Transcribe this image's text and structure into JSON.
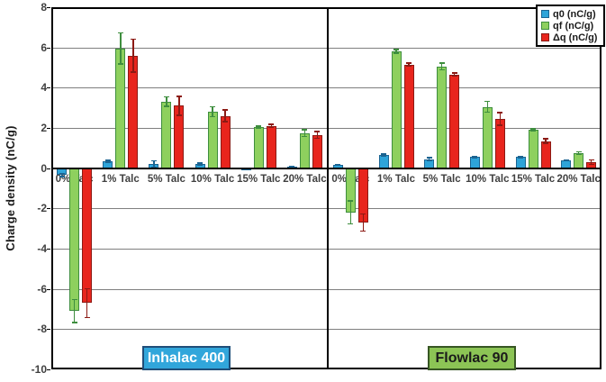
{
  "chart_data": {
    "type": "bar",
    "title": "",
    "ylabel": "Charge density (nC/g)",
    "ylim": [
      -10,
      8
    ],
    "ytick_step": 2,
    "grid": true,
    "legend_position": "top-right",
    "categories": [
      "0% Talc",
      "1% Talc",
      "5% Talc",
      "10% Talc",
      "15% Talc",
      "20% Talc"
    ],
    "legend": [
      {
        "label": "q0 (nC/g)",
        "color": "#2EA4D9",
        "border": "#1B6492"
      },
      {
        "label": "qf (nC/g)",
        "color": "#8ED05E",
        "border": "#3E8E3E"
      },
      {
        "label": "Δq (nC/g)",
        "color": "#E8251D",
        "border": "#8C1A14"
      }
    ],
    "panels": [
      {
        "name": "Inhalac 400",
        "label_bg": "#31A6DB",
        "label_border": "#1F4E79",
        "label_text_color": "#FFFFFF",
        "series": [
          {
            "name": "q0 (nC/g)",
            "values": [
              -0.35,
              0.35,
              0.2,
              0.2,
              -0.07,
              0.08
            ],
            "errors": [
              0.1,
              0.08,
              0.2,
              0.08,
              0.05,
              0.05
            ]
          },
          {
            "name": "qf (nC/g)",
            "values": [
              -7.1,
              5.95,
              3.3,
              2.8,
              2.05,
              1.75
            ],
            "errors": [
              0.6,
              0.8,
              0.27,
              0.28,
              0.08,
              0.2
            ]
          },
          {
            "name": "Δq (nC/g)",
            "values": [
              -6.7,
              5.6,
              3.1,
              2.6,
              2.1,
              1.65
            ],
            "errors": [
              0.75,
              0.85,
              0.5,
              0.33,
              0.12,
              0.2
            ]
          }
        ]
      },
      {
        "name": "Flowlac 90",
        "label_bg": "#8CC455",
        "label_border": "#375623",
        "label_text_color": "#1a1a1a",
        "series": [
          {
            "name": "q0 (nC/g)",
            "values": [
              0.15,
              0.65,
              0.45,
              0.55,
              0.55,
              0.4
            ],
            "errors": [
              0.05,
              0.08,
              0.1,
              0.08,
              0.08,
              0.05
            ]
          },
          {
            "name": "qf (nC/g)",
            "values": [
              -2.2,
              5.8,
              5.05,
              3.05,
              1.9,
              0.75
            ],
            "errors": [
              0.6,
              0.12,
              0.2,
              0.3,
              0.1,
              0.1
            ]
          },
          {
            "name": "Δq (nC/g)",
            "values": [
              -2.7,
              5.15,
              4.65,
              2.45,
              1.35,
              0.3
            ],
            "errors": [
              0.45,
              0.1,
              0.12,
              0.35,
              0.15,
              0.15
            ]
          }
        ]
      }
    ]
  }
}
